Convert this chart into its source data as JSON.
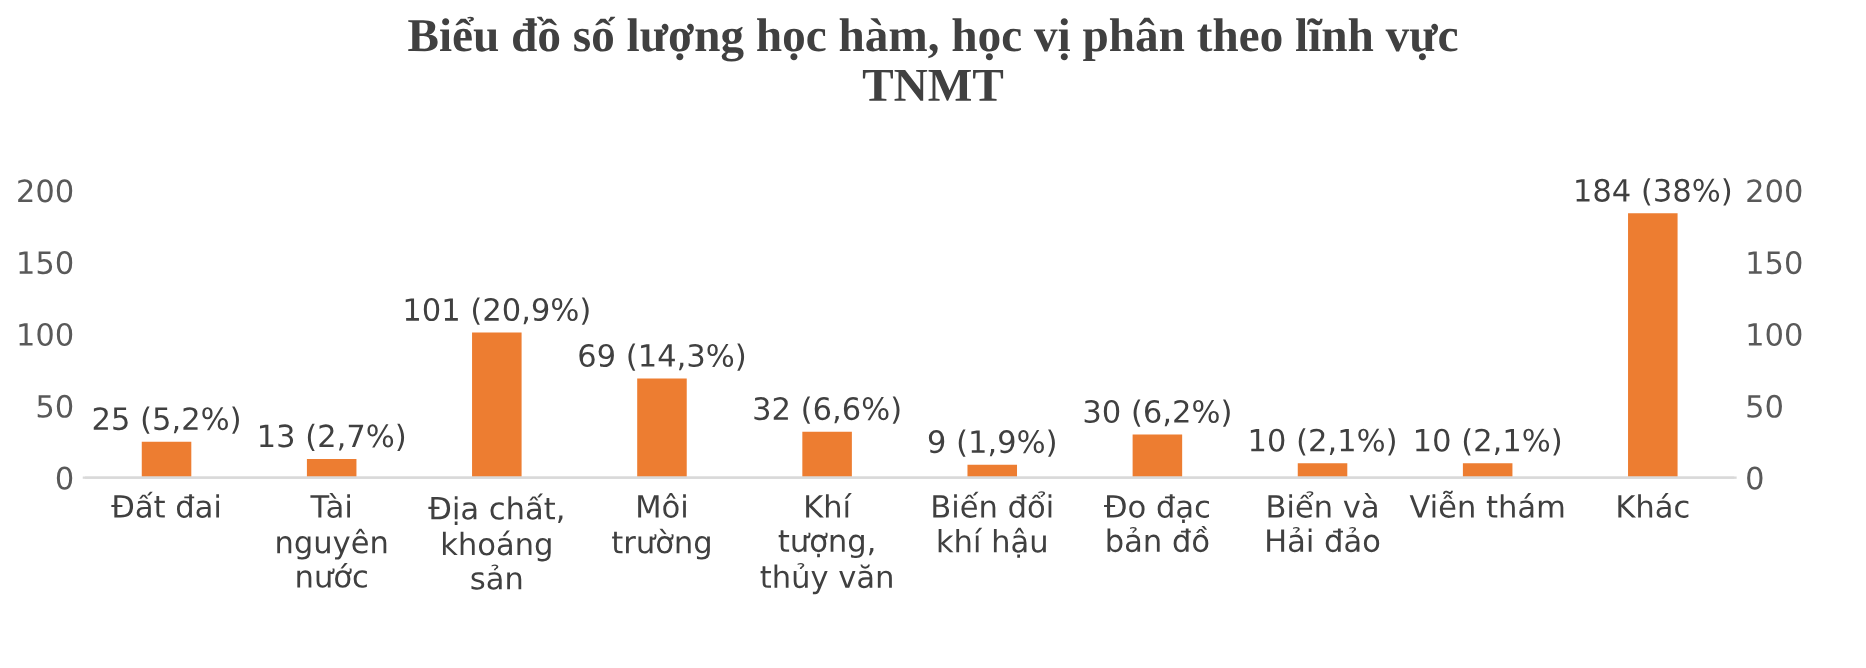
{
  "chart_data": {
    "type": "bar",
    "title": "Biểu đồ số lượng học hàm, học vị phân theo lĩnh vực\nTNMT",
    "categories": [
      "Đất đai",
      "Tài\nnguyên\nnước",
      "Địa chất,\nkhoáng\nsản",
      "Môi\ntrường",
      "Khí\ntượng,\nthủy văn",
      "Biến đổi\nkhí hậu",
      "Đo đạc\nbản đồ",
      "Biển và\nHải đảo",
      "Viễn thám",
      "Khác"
    ],
    "values": [
      25,
      13,
      101,
      69,
      32,
      9,
      30,
      10,
      10,
      184
    ],
    "value_labels": [
      "25 (5,2%)",
      "13 (2,7%)",
      "101 (20,9%)",
      "69 (14,3%)",
      "32 (6,6%)",
      "9 (1,9%)",
      "30 (6,2%)",
      "10 (2,1%)",
      "10 (2,1%)",
      "184 (38%)"
    ],
    "color": "#ed7d31",
    "ylim": [
      0,
      200
    ],
    "yticks": [
      0,
      50,
      100,
      150,
      200
    ],
    "y2lim": [
      0,
      200
    ],
    "y2ticks": [
      0,
      50,
      100,
      150,
      200
    ]
  }
}
